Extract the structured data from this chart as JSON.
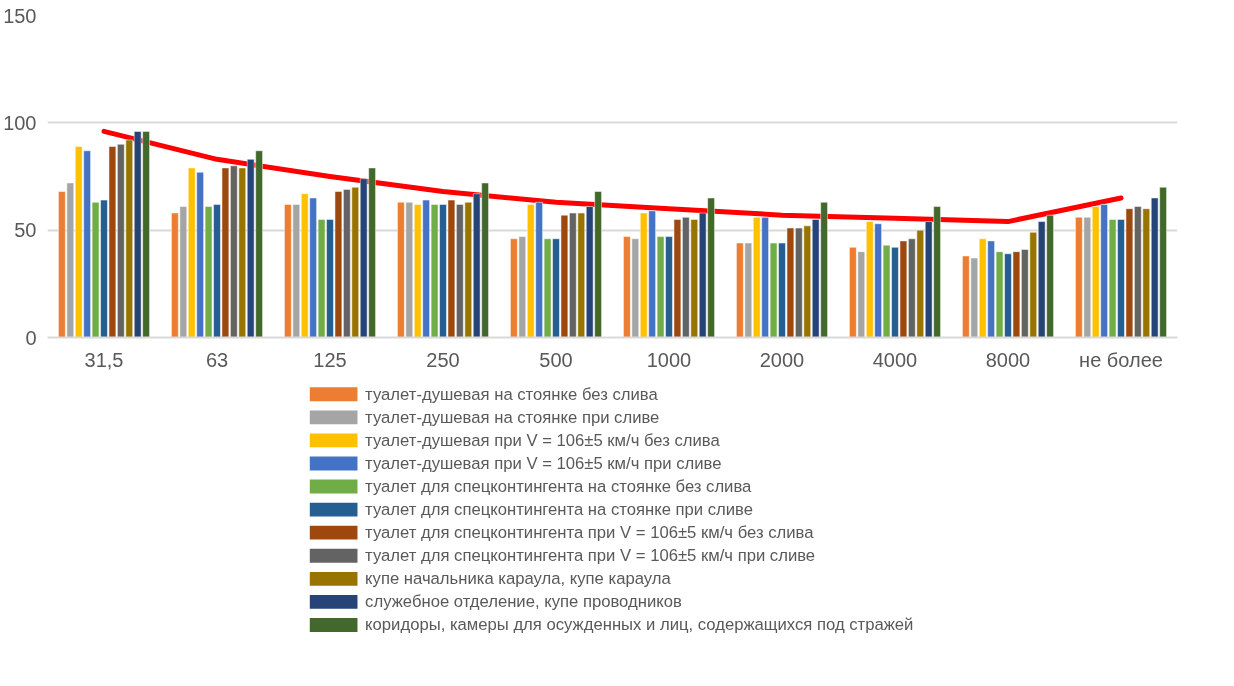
{
  "chart_data": {
    "type": "bar",
    "categories": [
      "31,5",
      "63",
      "125",
      "250",
      "500",
      "1000",
      "2000",
      "4000",
      "8000",
      "не более"
    ],
    "ylim": [
      0,
      150
    ],
    "yticks": [
      0,
      50,
      100,
      150
    ],
    "grid": "y",
    "legend": "bottom",
    "series": [
      {
        "name": "туалет-душевая на стоянке без слива",
        "color": "#ed7d31",
        "values": [
          68,
          58,
          62,
          63,
          46,
          47,
          44,
          42,
          38,
          56
        ]
      },
      {
        "name": "туалет-душевая на стоянке при сливе",
        "color": "#a5a5a5",
        "values": [
          72,
          61,
          62,
          63,
          47,
          46,
          44,
          40,
          37,
          56
        ]
      },
      {
        "name": "туалет-душевая при V = 106±5 км/ч без слива",
        "color": "#ffc000",
        "values": [
          89,
          79,
          67,
          62,
          62,
          58,
          56,
          54,
          46,
          61
        ]
      },
      {
        "name": "туалет-душевая при V = 106±5 км/ч при сливе",
        "color": "#4472c4",
        "values": [
          87,
          77,
          65,
          64,
          63,
          59,
          56,
          53,
          45,
          62
        ]
      },
      {
        "name": "туалет для спецконтингента на стоянке без слива",
        "color": "#70ad47",
        "values": [
          63,
          61,
          55,
          62,
          46,
          47,
          44,
          43,
          40,
          55
        ]
      },
      {
        "name": "туалет для спецконтингента на стоянке при сливе",
        "color": "#255e91",
        "values": [
          64,
          62,
          55,
          62,
          46,
          47,
          44,
          42,
          39,
          55
        ]
      },
      {
        "name": "туалет для спецконтингента  при V = 106±5 км/ч без слива",
        "color": "#9e480e",
        "values": [
          89,
          79,
          68,
          64,
          57,
          55,
          51,
          45,
          40,
          60
        ]
      },
      {
        "name": "туалет для спецконтингента  при V = 106±5 км/ч при сливе",
        "color": "#636363",
        "values": [
          90,
          80,
          69,
          62,
          58,
          56,
          51,
          46,
          41,
          61
        ]
      },
      {
        "name": "купе начальника караула, купе караула",
        "color": "#997300",
        "values": [
          92,
          79,
          70,
          63,
          58,
          55,
          52,
          50,
          49,
          60
        ]
      },
      {
        "name": "служебное отделение, купе проводников",
        "color": "#264478",
        "values": [
          96,
          83,
          74,
          67,
          61,
          58,
          55,
          54,
          54,
          65
        ]
      },
      {
        "name": "коридоры, камеры для осужденных и лиц, содержащихся под стражей",
        "color": "#43682b",
        "values": [
          96,
          87,
          79,
          72,
          68,
          65,
          63,
          61,
          57,
          70
        ]
      },
      {
        "type": "line",
        "color": "#ff0000",
        "values": [
          96,
          83,
          75,
          68,
          63,
          60,
          57,
          55.5,
          54,
          65
        ]
      }
    ]
  }
}
